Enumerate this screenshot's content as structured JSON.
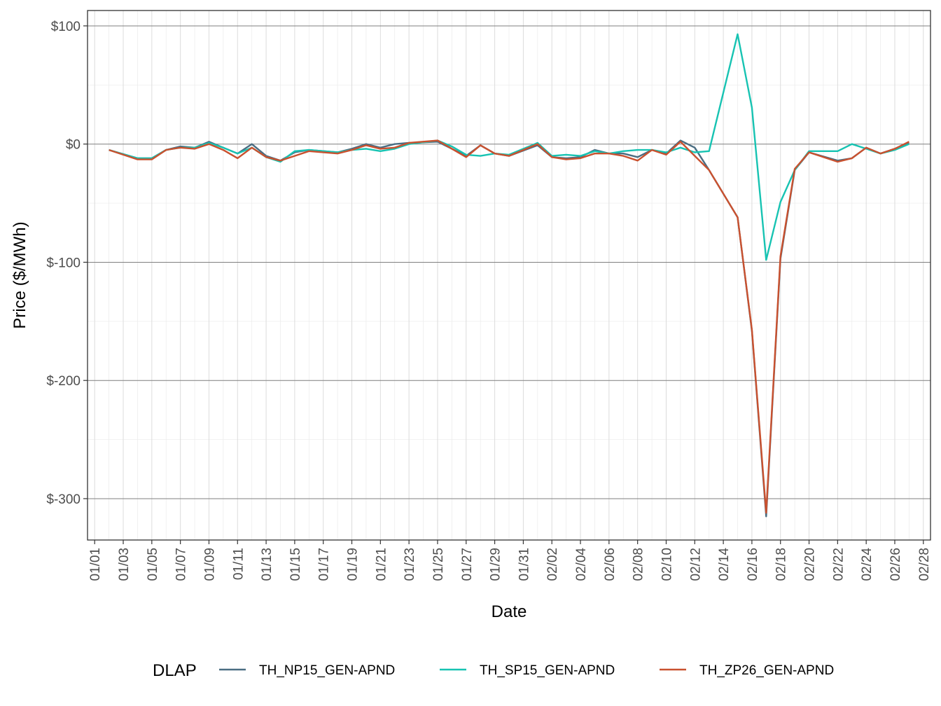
{
  "chart_data": {
    "type": "line",
    "title": "",
    "xlabel": "Date",
    "ylabel": "Price ($/MWh)",
    "ylim": [
      -335,
      113
    ],
    "y_ticks": [
      {
        "value": 100,
        "label": "$100"
      },
      {
        "value": 0,
        "label": "$0"
      },
      {
        "value": -100,
        "label": "$-100"
      },
      {
        "value": -200,
        "label": "$-200"
      },
      {
        "value": -300,
        "label": "$-300"
      }
    ],
    "x_tick_labels": [
      "01/01",
      "01/03",
      "01/05",
      "01/07",
      "01/09",
      "01/11",
      "01/13",
      "01/15",
      "01/17",
      "01/19",
      "01/21",
      "01/23",
      "01/25",
      "01/27",
      "01/29",
      "01/31",
      "02/02",
      "02/04",
      "02/06",
      "02/08",
      "02/10",
      "02/12",
      "02/14",
      "02/16",
      "02/18",
      "02/20",
      "02/22",
      "02/24",
      "02/26",
      "02/28"
    ],
    "x_dates": [
      "01/02",
      "01/04",
      "01/05",
      "01/06",
      "01/07",
      "01/08",
      "01/09",
      "01/10",
      "01/11",
      "01/12",
      "01/13",
      "01/14",
      "01/15",
      "01/16",
      "01/18",
      "01/19",
      "01/20",
      "01/21",
      "01/22",
      "01/23",
      "01/25",
      "01/26",
      "01/27",
      "01/28",
      "01/29",
      "01/30",
      "02/01",
      "02/02",
      "02/03",
      "02/04",
      "02/05",
      "02/06",
      "02/07",
      "02/08",
      "02/09",
      "02/10",
      "02/11",
      "02/12",
      "02/13",
      "02/15",
      "02/16",
      "02/17",
      "02/18",
      "02/19",
      "02/20",
      "02/22",
      "02/23",
      "02/24",
      "02/25",
      "02/26",
      "02/27"
    ],
    "legend": {
      "title": "DLAP",
      "position": "bottom"
    },
    "grid": true,
    "series": [
      {
        "name": "TH_NP15_GEN-APND",
        "color": "#4a6d82",
        "values": [
          -5,
          -12,
          -12,
          -5,
          -2,
          -3,
          2,
          -3,
          -8,
          0,
          -10,
          -14,
          -7,
          -5,
          -7,
          -4,
          0,
          -3,
          0,
          1,
          2,
          -4,
          -10,
          -1,
          -8,
          -10,
          -1,
          -11,
          -12,
          -11,
          -5,
          -8,
          -8,
          -11,
          -5,
          -8,
          3,
          -3,
          -22,
          -62,
          -158,
          -315,
          -97,
          -22,
          -7,
          -14,
          -12,
          -3,
          -8,
          -4,
          1
        ]
      },
      {
        "name": "TH_SP15_GEN-APND",
        "color": "#17c3b2",
        "values": [
          -5,
          -12,
          -12,
          -5,
          -3,
          -3,
          1,
          -3,
          -8,
          -3,
          -11,
          -15,
          -6,
          -5,
          -7,
          -5,
          -4,
          -6,
          -4,
          0,
          3,
          -2,
          -9,
          -10,
          -8,
          -9,
          1,
          -10,
          -9,
          -10,
          -6,
          -8,
          -6,
          -5,
          -5,
          -7,
          -3,
          -7,
          -6,
          93,
          31,
          -98,
          -49,
          -22,
          -6,
          -6,
          0,
          -4,
          -8,
          -5,
          0
        ]
      },
      {
        "name": "TH_ZP26_GEN-APND",
        "color": "#c9512f",
        "values": [
          -5,
          -13,
          -13,
          -5,
          -3,
          -4,
          0,
          -5,
          -12,
          -3,
          -11,
          -14,
          -10,
          -6,
          -8,
          -5,
          -1,
          -4,
          -3,
          1,
          3,
          -4,
          -11,
          -1,
          -8,
          -10,
          0,
          -11,
          -13,
          -12,
          -8,
          -8,
          -10,
          -14,
          -5,
          -9,
          2,
          -10,
          -22,
          -62,
          -157,
          -312,
          -95,
          -21,
          -7,
          -15,
          -12,
          -3,
          -8,
          -4,
          2
        ]
      }
    ]
  }
}
